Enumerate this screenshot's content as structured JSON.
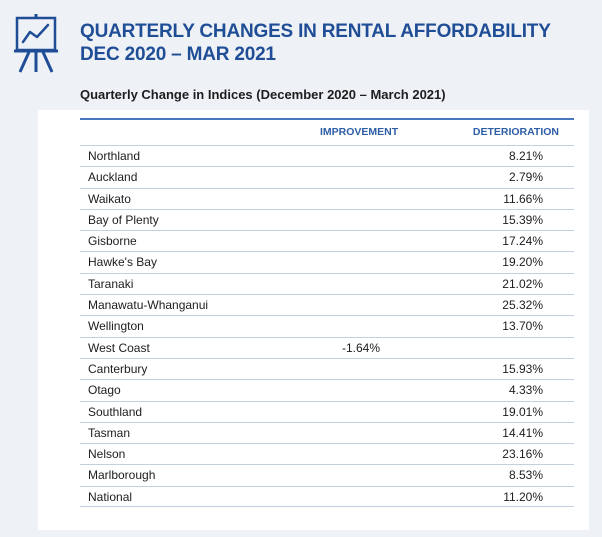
{
  "header": {
    "title_line1": "QUARTERLY CHANGES IN RENTAL AFFORDABILITY",
    "title_line2": "DEC 2020 – MAR 2021",
    "subtitle": "Quarterly Change in Indices (December 2020 – March 2021)",
    "icon": "presentation-chart-icon",
    "accent_color": "#1f4e96"
  },
  "table": {
    "columns": {
      "region": "",
      "improvement": "IMPROVEMENT",
      "deterioration": "DETERIORATION"
    },
    "rows": [
      {
        "region": "Northland",
        "improvement": "",
        "deterioration": "8.21%"
      },
      {
        "region": "Auckland",
        "improvement": "",
        "deterioration": "2.79%"
      },
      {
        "region": "Waikato",
        "improvement": "",
        "deterioration": "11.66%"
      },
      {
        "region": "Bay of Plenty",
        "improvement": "",
        "deterioration": "15.39%"
      },
      {
        "region": "Gisborne",
        "improvement": "",
        "deterioration": "17.24%"
      },
      {
        "region": "Hawke's Bay",
        "improvement": "",
        "deterioration": "19.20%"
      },
      {
        "region": "Taranaki",
        "improvement": "",
        "deterioration": "21.02%"
      },
      {
        "region": "Manawatu-Whanganui",
        "improvement": "",
        "deterioration": "25.32%"
      },
      {
        "region": "Wellington",
        "improvement": "",
        "deterioration": "13.70%"
      },
      {
        "region": "West Coast",
        "improvement": "-1.64%",
        "deterioration": ""
      },
      {
        "region": "Canterbury",
        "improvement": "",
        "deterioration": "15.93%"
      },
      {
        "region": "Otago",
        "improvement": "",
        "deterioration": "4.33%"
      },
      {
        "region": "Southland",
        "improvement": "",
        "deterioration": "19.01%"
      },
      {
        "region": "Tasman",
        "improvement": "",
        "deterioration": "14.41%"
      },
      {
        "region": "Nelson",
        "improvement": "",
        "deterioration": "23.16%"
      },
      {
        "region": "Marlborough",
        "improvement": "",
        "deterioration": "8.53%"
      },
      {
        "region": "National",
        "improvement": "",
        "deterioration": "11.20%"
      }
    ]
  }
}
